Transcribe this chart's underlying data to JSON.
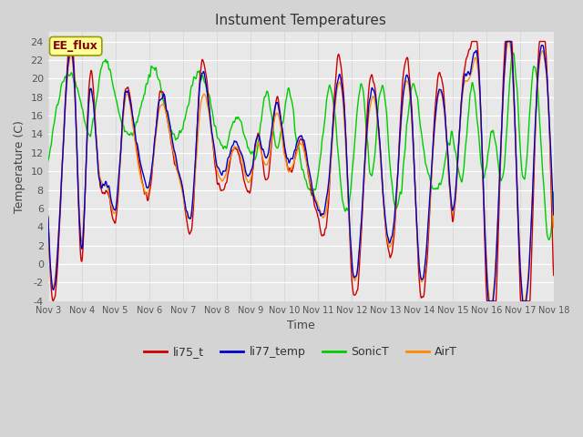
{
  "title": "Instument Temperatures",
  "ylabel": "Temperature (C)",
  "xlabel": "Time",
  "ylim": [
    -4,
    25
  ],
  "yticks": [
    -4,
    -2,
    0,
    2,
    4,
    6,
    8,
    10,
    12,
    14,
    16,
    18,
    20,
    22,
    24
  ],
  "xtick_labels": [
    "Nov 3",
    "Nov 4",
    "Nov 5",
    "Nov 6",
    "Nov 7",
    "Nov 8",
    "Nov 9",
    "Nov 10",
    "Nov 11",
    "Nov 12",
    "Nov 13",
    "Nov 14",
    "Nov 15",
    "Nov 16",
    "Nov 17",
    "Nov 18"
  ],
  "colors": {
    "li75_t": "#cc0000",
    "li77_temp": "#0000cc",
    "SonicT": "#00cc00",
    "AirT": "#ff8800"
  },
  "line_width": 1.0,
  "fig_bg_color": "#d4d4d4",
  "plot_bg_color": "#e8e8e8",
  "annotation_text": "EE_flux",
  "annotation_bg": "#ffff99",
  "annotation_border": "#999900",
  "legend_labels": [
    "li75_t",
    "li77_temp",
    "SonicT",
    "AirT"
  ]
}
